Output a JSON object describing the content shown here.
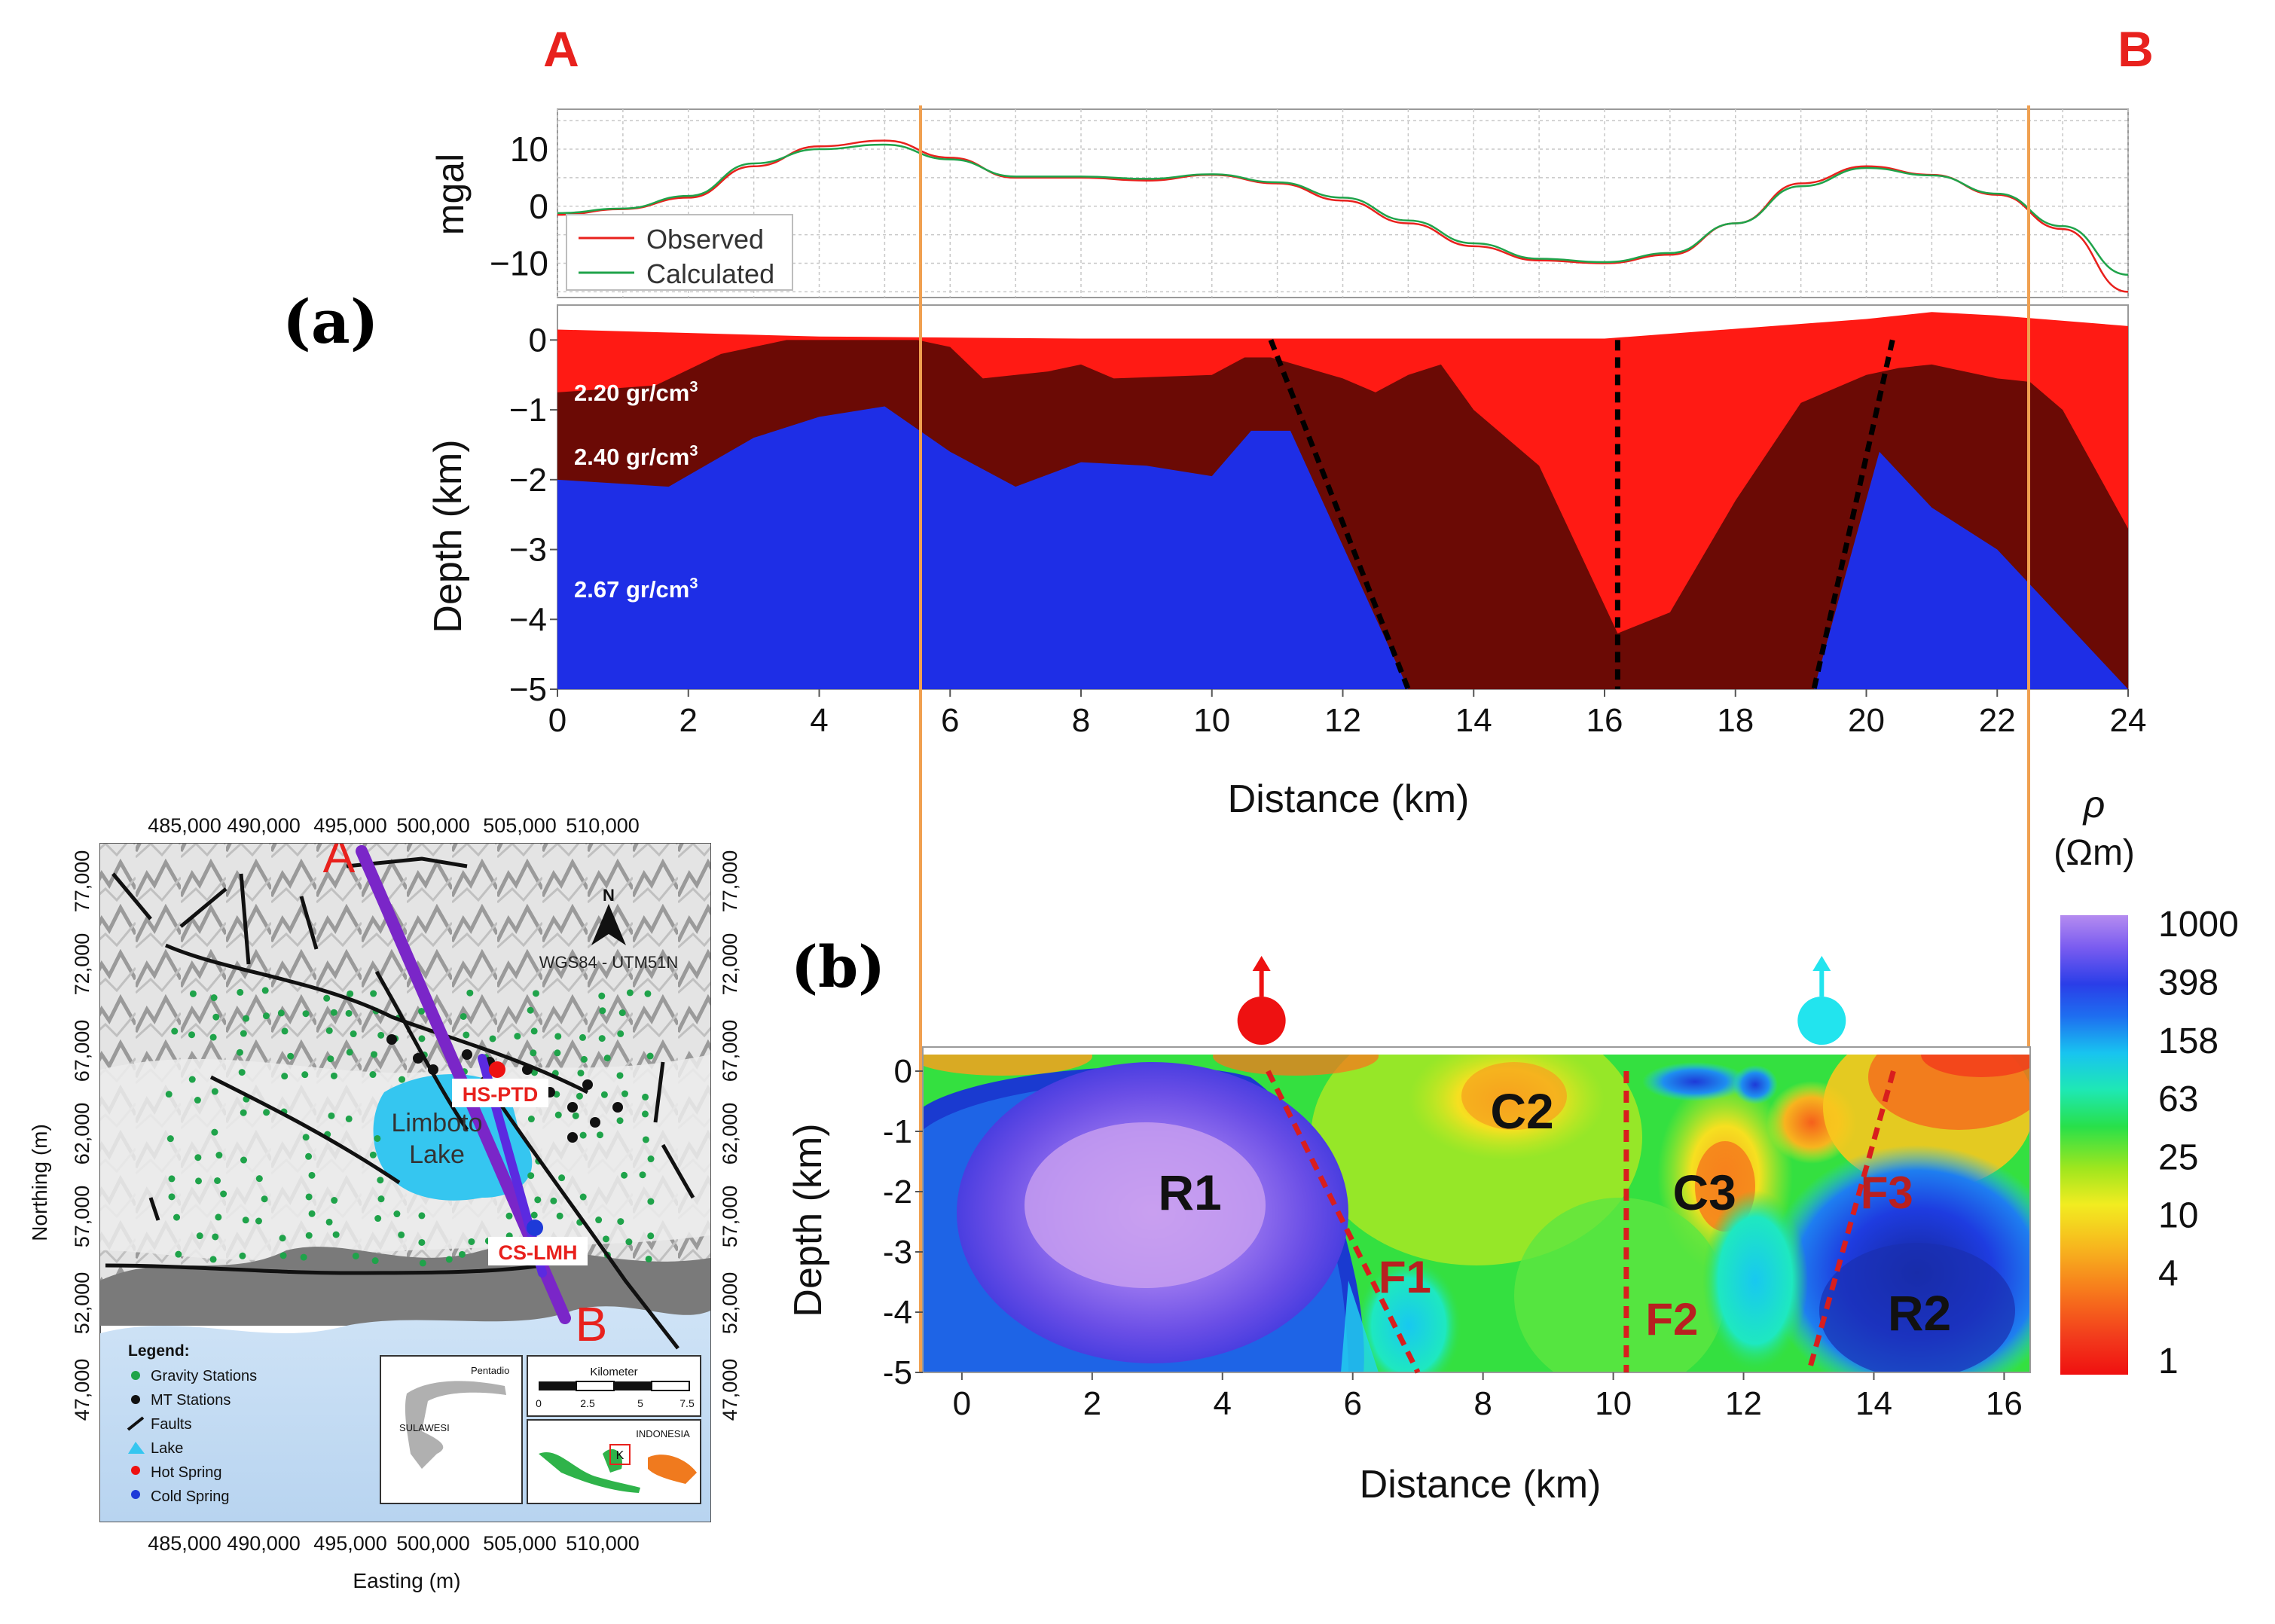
{
  "endpoints": {
    "a": "A",
    "b": "B",
    "color": "#e8211d"
  },
  "panel_labels": {
    "a": "(a)",
    "b": "(b)"
  },
  "colors": {
    "observed": "#e8211d",
    "calculated": "#1fa34a",
    "layer_top": "#ff1a14",
    "layer_mid": "#6b0a05",
    "layer_bottom": "#1e2ee6",
    "profile_line": "#f0a050",
    "fault_black": "#000000",
    "fault_red": "#d81e1e",
    "hot_spring": "#ee1111",
    "cold_spring": "#22e4ee"
  },
  "chart_data": [
    {
      "id": "gravity-anomaly",
      "type": "line",
      "ylabel": "mgal",
      "xlim": [
        0,
        24
      ],
      "ylim": [
        -16,
        17
      ],
      "yticks": [
        "10",
        "0",
        "−10"
      ],
      "ytick_values": [
        10,
        0,
        -10
      ],
      "legend": "bottom-left",
      "series": [
        {
          "name": "Observed",
          "x": [
            0,
            1,
            2,
            3,
            4,
            5,
            6,
            7,
            8,
            9,
            10,
            11,
            12,
            13,
            14,
            15,
            16,
            17,
            18,
            19,
            20,
            21,
            22,
            23,
            24
          ],
          "y": [
            -1.5,
            -0.5,
            1.5,
            7,
            10.5,
            11.5,
            8.5,
            5,
            5,
            4.5,
            5.5,
            4,
            1,
            -3,
            -7,
            -9.5,
            -10,
            -8.5,
            -3,
            4,
            7,
            5.5,
            2,
            -4,
            -15
          ]
        },
        {
          "name": "Calculated",
          "x": [
            0,
            1,
            2,
            3,
            4,
            5,
            6,
            7,
            8,
            9,
            10,
            11,
            12,
            13,
            14,
            15,
            16,
            17,
            18,
            19,
            20,
            21,
            22,
            23,
            24
          ],
          "y": [
            -1.2,
            -0.4,
            1.8,
            7.5,
            10,
            10.8,
            8.2,
            5.2,
            5.2,
            4.8,
            5.6,
            4.2,
            1.5,
            -2.5,
            -6.5,
            -9.2,
            -9.8,
            -8.2,
            -3,
            3.5,
            6.7,
            5.4,
            2.2,
            -3.5,
            -12
          ]
        }
      ]
    },
    {
      "id": "density-model",
      "type": "area",
      "xlabel": "Distance (km)",
      "ylabel": "Depth (km)",
      "xlim": [
        0,
        24
      ],
      "ylim": [
        -5,
        0.5
      ],
      "xticks": [
        "0",
        "2",
        "4",
        "6",
        "8",
        "10",
        "12",
        "14",
        "16",
        "18",
        "20",
        "22",
        "24"
      ],
      "xtick_values": [
        0,
        2,
        4,
        6,
        8,
        10,
        12,
        14,
        16,
        18,
        20,
        22,
        24
      ],
      "yticks": [
        "0",
        "−1",
        "−2",
        "−3",
        "−4",
        "−5"
      ],
      "ytick_values": [
        0,
        -1,
        -2,
        -3,
        -4,
        -5
      ],
      "layers": [
        {
          "name": "2.20 gr/cm",
          "sup": "3",
          "density": 2.2,
          "top_x": [
            0,
            4,
            8,
            12,
            16,
            20,
            21,
            22,
            24
          ],
          "top_y": [
            0.15,
            0.05,
            0.02,
            0.02,
            0.02,
            0.3,
            0.4,
            0.35,
            0.2
          ]
        },
        {
          "name": "2.40 gr/cm",
          "sup": "3",
          "density": 2.4,
          "top_x": [
            0,
            1.5,
            2.5,
            3.5,
            4.5,
            5.5,
            6,
            6.5,
            7.5,
            8,
            8.5,
            10,
            10.5,
            10.9,
            12,
            12.5,
            13,
            13.5,
            14,
            15,
            16.2,
            17,
            18,
            19,
            20,
            20.5,
            21,
            22,
            22.5,
            23,
            24
          ],
          "top_y": [
            -0.75,
            -0.65,
            -0.2,
            0,
            0,
            0,
            -0.1,
            -0.55,
            -0.45,
            -0.35,
            -0.55,
            -0.5,
            -0.25,
            -0.25,
            -0.55,
            -0.75,
            -0.5,
            -0.35,
            -1.0,
            -1.8,
            -4.2,
            -3.9,
            -2.3,
            -0.9,
            -0.5,
            -0.4,
            -0.35,
            -0.55,
            -0.6,
            -1.0,
            -2.7
          ]
        },
        {
          "name": "2.67 gr/cm",
          "sup": "3",
          "density": 2.67,
          "top_x": [
            0,
            1.7,
            3,
            4,
            5,
            6,
            7,
            8,
            9,
            10,
            10.6,
            11.2,
            13,
            19.2,
            20.2,
            21,
            22,
            23,
            24
          ],
          "top_y": [
            -2.0,
            -2.1,
            -1.4,
            -1.1,
            -0.95,
            -1.6,
            -2.1,
            -1.75,
            -1.8,
            -1.95,
            -1.3,
            -1.3,
            -5,
            -5,
            -1.6,
            -2.4,
            -3.0,
            -4.0,
            -5.0
          ]
        }
      ],
      "faults": [
        {
          "x": [
            10.9,
            13.0
          ],
          "y": [
            0,
            -5
          ]
        },
        {
          "x": [
            16.2,
            16.2
          ],
          "y": [
            0,
            -5
          ]
        },
        {
          "x": [
            20.4,
            19.2
          ],
          "y": [
            0,
            -5
          ]
        }
      ]
    },
    {
      "id": "resistivity-section",
      "type": "heatmap",
      "xlabel": "Distance (km)",
      "ylabel": "Depth (km)",
      "xlim": [
        -0.6,
        16.4
      ],
      "ylim": [
        -5,
        0.4
      ],
      "xticks": [
        "0",
        "2",
        "4",
        "6",
        "8",
        "10",
        "12",
        "14",
        "16"
      ],
      "xtick_values": [
        0,
        2,
        4,
        6,
        8,
        10,
        12,
        14,
        16
      ],
      "yticks": [
        "0",
        "-1",
        "-2",
        "-3",
        "-4",
        "-5"
      ],
      "ytick_values": [
        0,
        -1,
        -2,
        -3,
        -4,
        -5
      ],
      "colorbar": {
        "title": "ρ",
        "unit": "(Ωm)",
        "ticks": [
          "1000",
          "398",
          "158",
          "63",
          "25",
          "10",
          "4",
          "1"
        ],
        "tick_values": [
          1000,
          398,
          158,
          63,
          25,
          10,
          4,
          1
        ]
      },
      "features": [
        {
          "label": "R1",
          "x": 3.5,
          "depth": -2.0,
          "kind": "resistive"
        },
        {
          "label": "C2",
          "x": 8.6,
          "depth": -0.65,
          "kind": "conductive"
        },
        {
          "label": "C3",
          "x": 11.4,
          "depth": -2.0,
          "kind": "conductive"
        },
        {
          "label": "R2",
          "x": 14.7,
          "depth": -4.0,
          "kind": "resistive"
        }
      ],
      "faults": [
        {
          "label": "F1",
          "x": [
            4.7,
            7.0
          ],
          "y": [
            0,
            -5
          ],
          "label_x": 6.8,
          "label_y": -3.4
        },
        {
          "label": "F2",
          "x": [
            10.2,
            10.2
          ],
          "y": [
            0,
            -5
          ],
          "label_x": 10.9,
          "label_y": -4.1
        },
        {
          "label": "F3",
          "x": [
            14.3,
            13.0
          ],
          "y": [
            0,
            -5
          ],
          "label_x": 14.2,
          "label_y": -2.0
        }
      ],
      "springs": [
        {
          "kind": "hot",
          "x": 4.6
        },
        {
          "kind": "cold",
          "x": 13.2
        }
      ]
    }
  ],
  "map": {
    "x_ticks": [
      "485,000",
      "490,000",
      "495,000",
      "500,000",
      "505,000",
      "510,000"
    ],
    "y_ticks": [
      "77,000",
      "72,000",
      "67,000",
      "62,000",
      "57,000",
      "52,000",
      "47,000"
    ],
    "xlabel": "Easting (m)",
    "ylabel": "Northing (m)",
    "point_a": "A",
    "point_b": "B",
    "lake_label_1": "Limboto",
    "lake_label_2": "Lake",
    "hot_spring_label": "HS-PTD",
    "cold_spring_label": "CS-LMH",
    "north": "N",
    "projection": "WGS84 - UTM51N",
    "legend_title": "Legend:",
    "legend_items": [
      "Gravity Stations",
      "MT Stations",
      "Faults",
      "Lake",
      "Hot Spring",
      "Cold Spring"
    ],
    "scale_title": "Kilometer",
    "scale_ticks": [
      "0",
      "2.5",
      "5",
      "7.5"
    ],
    "inset_label_1": "Pentadio",
    "inset_label_2": "SULAWESI",
    "inset_label_3": "INDONESIA",
    "inset_marker": "K"
  }
}
